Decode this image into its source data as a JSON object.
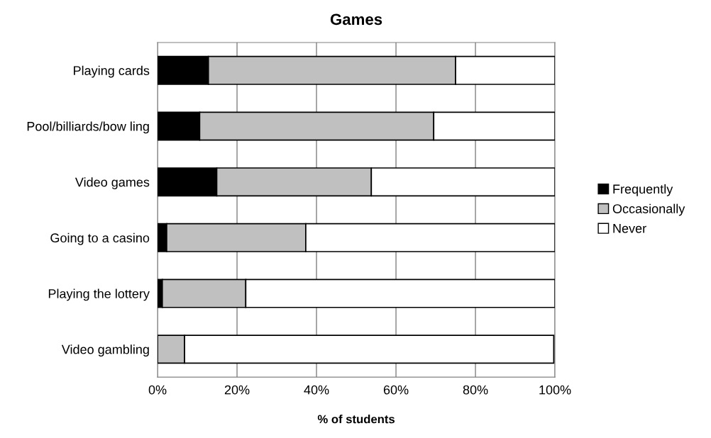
{
  "chart_data": {
    "type": "bar",
    "orientation": "horizontal",
    "stacked": true,
    "title": "Games",
    "xlabel": "% of students",
    "categories": [
      "Playing cards",
      "Pool/billiards/bow ling",
      "Video games",
      "Going to a casino",
      "Playing the lottery",
      "Video gambling"
    ],
    "series": [
      {
        "name": "Frequently",
        "color": "#000000",
        "values": [
          12.8,
          10.6,
          14.9,
          2.3,
          1.2,
          null
        ]
      },
      {
        "name": "Occasionally",
        "color": "#c0c0c0",
        "values": [
          62.2,
          58.9,
          38.9,
          35.0,
          21.0,
          6.8
        ]
      },
      {
        "name": "Never",
        "color": "#ffffff",
        "values": [
          25.0,
          30.5,
          46.2,
          62.7,
          77.8,
          92.9
        ]
      }
    ],
    "xlim": [
      0,
      100
    ],
    "xticks": [
      {
        "value": 0,
        "label": "0%"
      },
      {
        "value": 20,
        "label": "20%"
      },
      {
        "value": 40,
        "label": "40%"
      },
      {
        "value": 60,
        "label": "60%"
      },
      {
        "value": 80,
        "label": "80%"
      },
      {
        "value": 100,
        "label": "100%"
      }
    ],
    "grid": "x",
    "legend": "right"
  }
}
